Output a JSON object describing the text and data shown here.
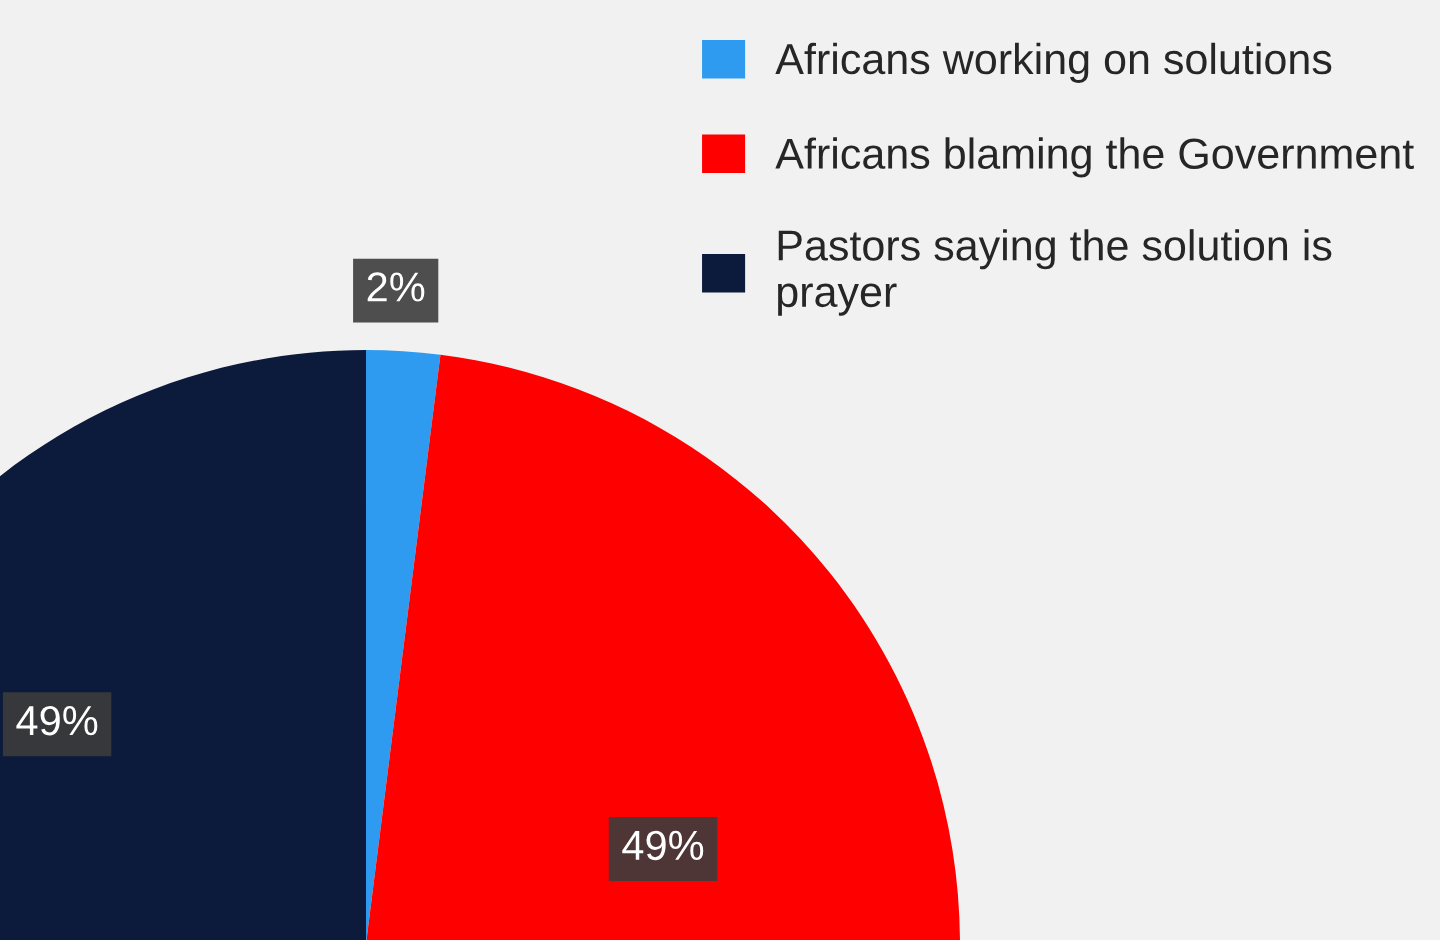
{
  "chart_data": {
    "type": "pie",
    "categories": [
      "Africans working on solutions",
      "Africans blaming the Government",
      "Pastors saying the solution is prayer"
    ],
    "values": [
      2,
      49,
      49
    ],
    "colors": [
      "#2f9bf0",
      "#fe0000",
      "#0c1a3b"
    ],
    "value_labels": [
      "2%",
      "49%",
      "49%"
    ],
    "legend": "top right"
  }
}
